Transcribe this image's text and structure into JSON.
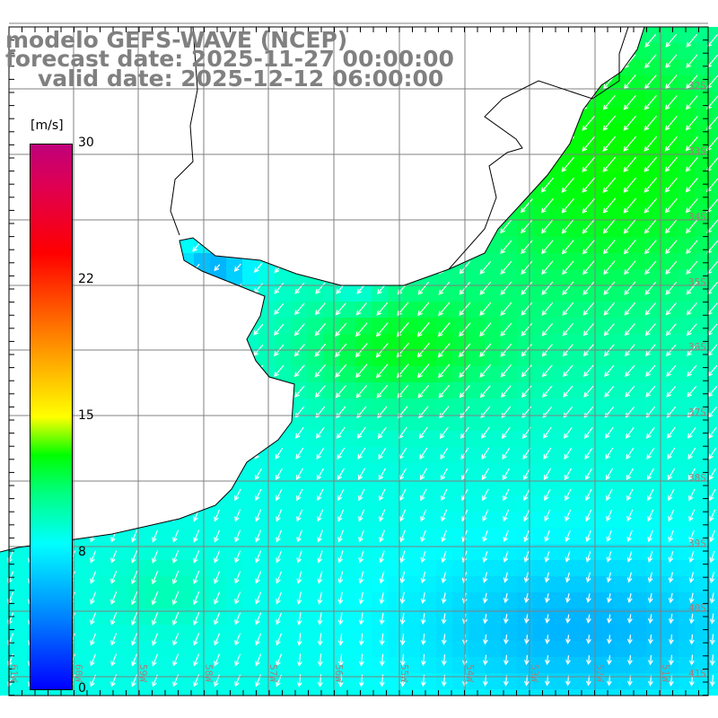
{
  "title": {
    "line1": "modelo GEFS-WAVE (NCEP)",
    "line2": "forecast date: 2025-11-27 00:00:00",
    "line3": "valid date: 2025-12-12 06:00:00"
  },
  "colorbar": {
    "unit": "[m/s]",
    "ticks": [
      "30",
      "22",
      "15",
      "8",
      "0"
    ],
    "min": 0,
    "max": 30
  },
  "lat_labels": [
    "32S",
    "33S",
    "34S",
    "35S",
    "36S",
    "37S",
    "38S",
    "39S",
    "40S",
    "41S"
  ],
  "lon_labels": [
    "61W",
    "60W",
    "59W",
    "58W",
    "57W",
    "56W",
    "55W",
    "54W",
    "53W",
    "52W",
    "51W"
  ],
  "colors": {
    "land": "#ffffff",
    "grid": "#808080",
    "arrow": "#ffffff",
    "title": "#808080"
  }
}
